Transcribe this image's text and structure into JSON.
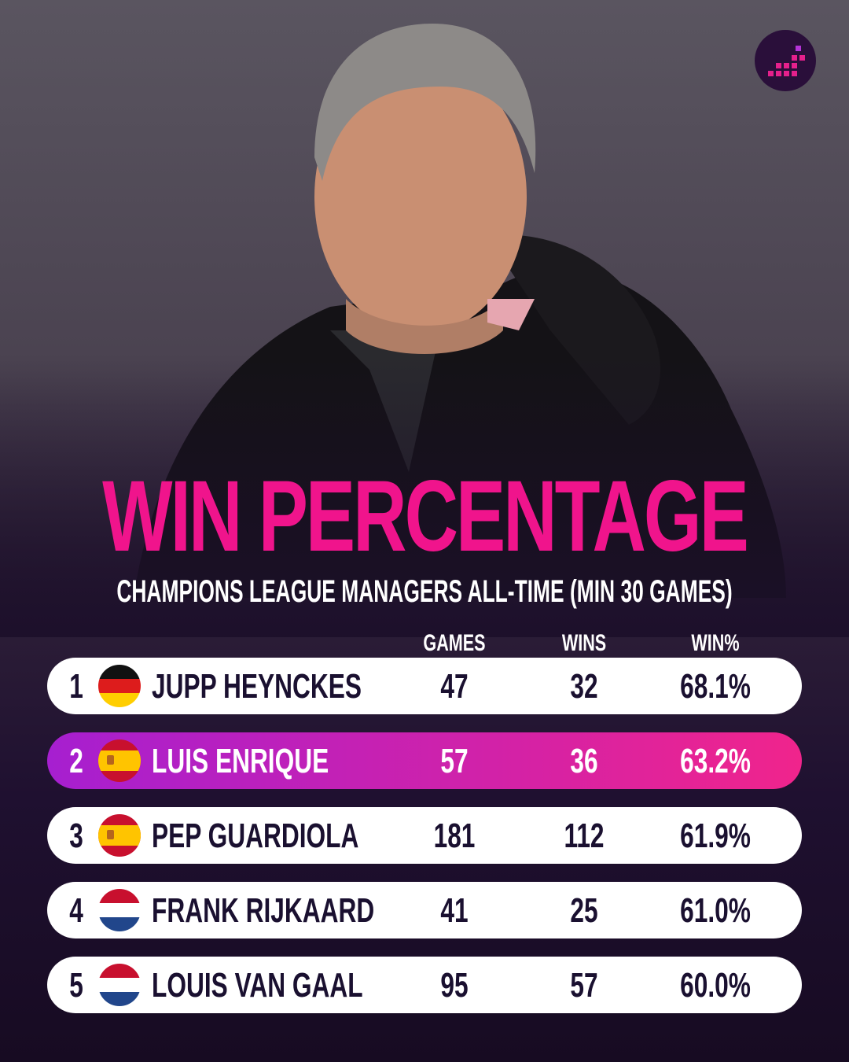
{
  "header": {
    "title": "WIN PERCENTAGE",
    "subtitle": "CHAMPIONS LEAGUE MANAGERS ALL-TIME (MIN 30 GAMES)"
  },
  "table": {
    "columns": [
      "GAMES",
      "WINS",
      "WIN%"
    ],
    "rows": [
      [
        "1",
        "JUPP HEYNCKES",
        "47",
        "32",
        "68.1%"
      ],
      [
        "2",
        "LUIS ENRIQUE",
        "57",
        "36",
        "63.2%"
      ],
      [
        "3",
        "PEP GUARDIOLA",
        "181",
        "112",
        "61.9%"
      ],
      [
        "4",
        "FRANK RIJKAARD",
        "41",
        "25",
        "61.0%"
      ],
      [
        "5",
        "LOUIS VAN GAAL",
        "95",
        "57",
        "60.0%"
      ]
    ]
  }
}
